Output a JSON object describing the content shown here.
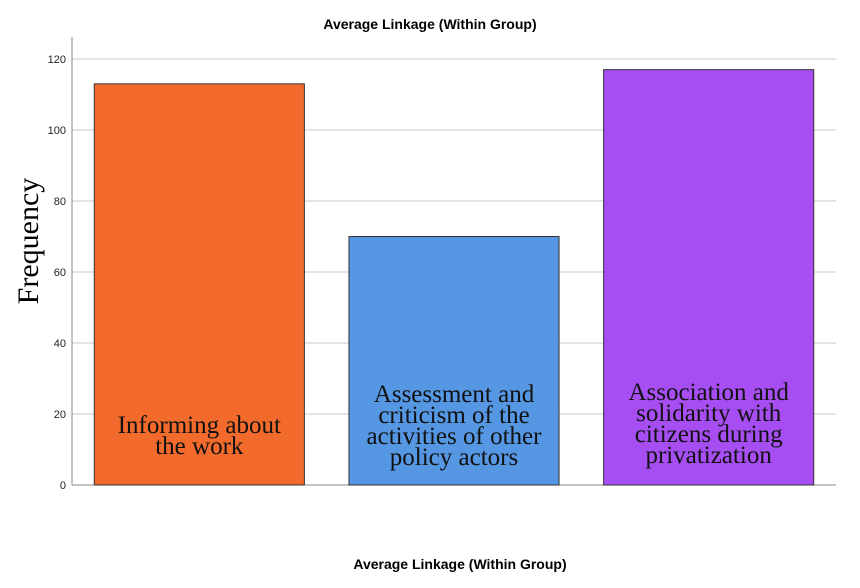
{
  "chart_data": {
    "type": "bar",
    "title": "Average Linkage (Within Group)",
    "xlabel": "Average Linkage (Within Group)",
    "ylabel": "Frequency",
    "ylim": [
      0,
      120
    ],
    "yticks": [
      0,
      20,
      40,
      60,
      80,
      100,
      120
    ],
    "grid": true,
    "categories": [
      "Informing about the work",
      "Assessment and criticism of the activities of other policy actors",
      "Association and solidarity with citizens during privatization"
    ],
    "label_lines": [
      [
        "Informing about",
        "the work"
      ],
      [
        "Assessment and",
        "criticism of the",
        "activities of other",
        "policy actors"
      ],
      [
        "Association and",
        "solidarity with",
        "citizens during",
        "privatization"
      ]
    ],
    "values": [
      113,
      70,
      117
    ],
    "colors": [
      "#f26a2c",
      "#5597e3",
      "#a64ef2"
    ]
  }
}
